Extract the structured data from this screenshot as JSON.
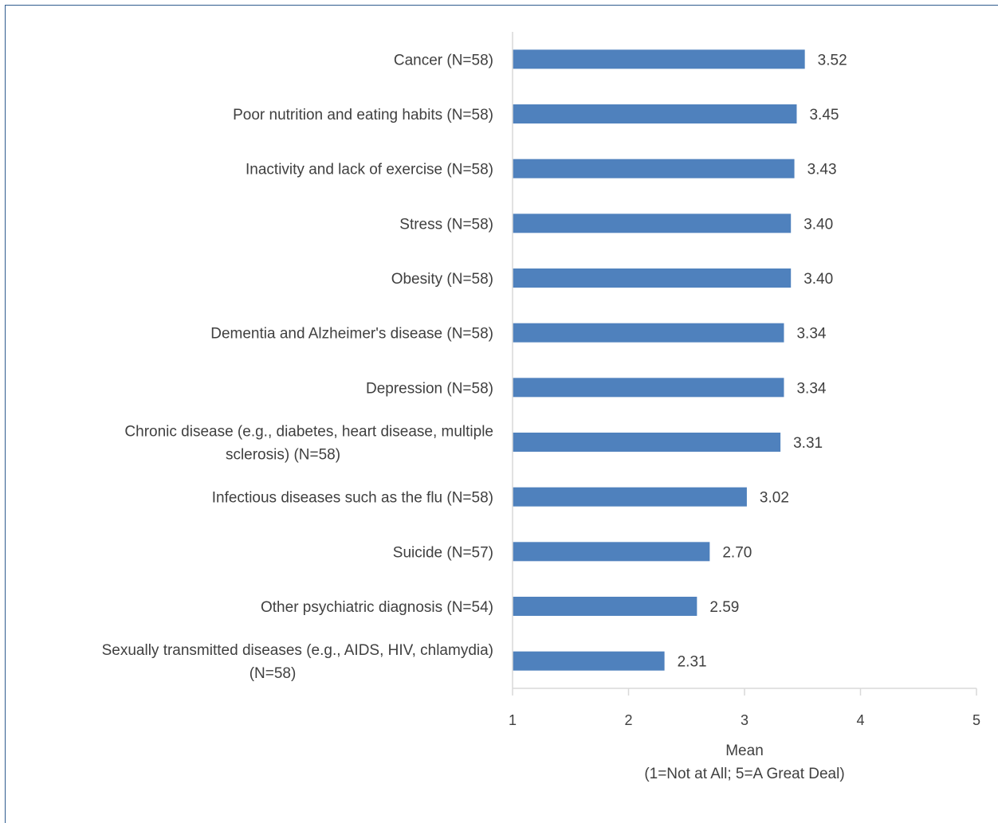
{
  "chart_data": {
    "type": "bar",
    "orientation": "horizontal",
    "categories": [
      [
        "Cancer (N=58)"
      ],
      [
        "Poor nutrition and eating habits (N=58)"
      ],
      [
        "Inactivity and lack of exercise (N=58)"
      ],
      [
        "Stress (N=58)"
      ],
      [
        "Obesity (N=58)"
      ],
      [
        "Dementia and Alzheimer's disease (N=58)"
      ],
      [
        "Depression (N=58)"
      ],
      [
        "Chronic disease (e.g., diabetes, heart disease, multiple",
        "sclerosis) (N=58)"
      ],
      [
        "Infectious diseases such as the flu (N=58)"
      ],
      [
        "Suicide (N=57)"
      ],
      [
        "Other psychiatric diagnosis (N=54)"
      ],
      [
        "Sexually transmitted diseases (e.g., AIDS, HIV, chlamydia)",
        "(N=58)"
      ]
    ],
    "values": [
      3.52,
      3.45,
      3.43,
      3.4,
      3.4,
      3.34,
      3.34,
      3.31,
      3.02,
      2.7,
      2.59,
      2.31
    ],
    "value_labels": [
      "3.52",
      "3.45",
      "3.43",
      "3.40",
      "3.40",
      "3.34",
      "3.34",
      "3.31",
      "3.02",
      "2.70",
      "2.59",
      "2.31"
    ],
    "xlim": [
      1,
      5
    ],
    "xticks": [
      1,
      2,
      3,
      4,
      5
    ],
    "xlabel": [
      "Mean",
      "(1=Not at All; 5=A Great Deal)"
    ],
    "bar_color": "#4f81bd",
    "grid": false,
    "legend": "none"
  }
}
